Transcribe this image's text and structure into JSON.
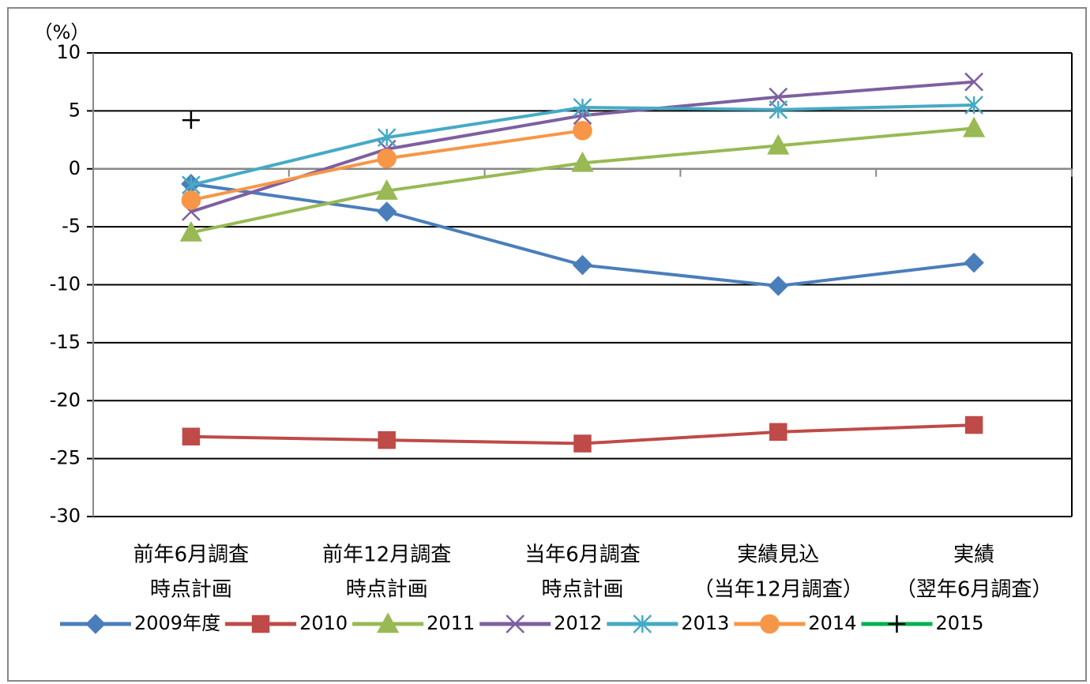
{
  "chart_data": {
    "type": "line",
    "y_axis_label": "（%）",
    "categories": [
      [
        "前年6月調査",
        "時点計画"
      ],
      [
        "前年12月調査",
        "時点計画"
      ],
      [
        "当年6月調査",
        "時点計画"
      ],
      [
        "実績見込",
        "（当年12月調査）"
      ],
      [
        "実績",
        "（翌年6月調査）"
      ]
    ],
    "series": [
      {
        "name": "2009年度",
        "color": "#4a7ebb",
        "marker": "diamond",
        "values": [
          -1.3,
          -3.7,
          -8.3,
          -10.1,
          -8.1
        ]
      },
      {
        "name": "2010",
        "color": "#be4b48",
        "marker": "square",
        "values": [
          -23.1,
          -23.4,
          -23.7,
          -22.7,
          -22.1
        ]
      },
      {
        "name": "2011",
        "color": "#98b954",
        "marker": "triangle",
        "values": [
          -5.5,
          -1.9,
          0.5,
          2.0,
          3.5
        ]
      },
      {
        "name": "2012",
        "color": "#7d60a0",
        "marker": "x",
        "values": [
          -3.7,
          1.7,
          4.6,
          6.2,
          7.5
        ]
      },
      {
        "name": "2013",
        "color": "#46aac5",
        "marker": "asterisk",
        "values": [
          -1.4,
          2.7,
          5.3,
          5.1,
          5.5
        ]
      },
      {
        "name": "2014",
        "color": "#f79646",
        "marker": "circle",
        "values": [
          -2.7,
          0.9,
          3.3,
          null,
          null
        ]
      },
      {
        "name": "2015",
        "color": "#00b050",
        "marker": "plus",
        "marker_color": "#000000",
        "values": [
          4.2,
          null,
          null,
          null,
          null
        ]
      }
    ],
    "ylim": [
      -30,
      10
    ],
    "yticks": [
      -30,
      -25,
      -20,
      -15,
      -10,
      -5,
      0,
      5,
      10
    ],
    "grid": true,
    "legend": "bottom"
  }
}
